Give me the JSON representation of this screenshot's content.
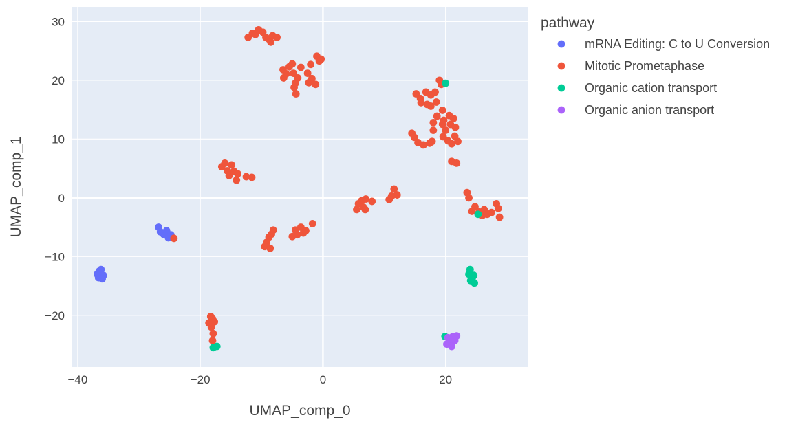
{
  "chart_data": {
    "type": "scatter",
    "xlabel": "UMAP_comp_0",
    "ylabel": "UMAP_comp_1",
    "xlim": [
      -41,
      33.5
    ],
    "ylim": [
      -28.8,
      32.5
    ],
    "xticks": [
      -40,
      -20,
      0,
      20
    ],
    "yticks": [
      -20,
      -10,
      0,
      10,
      20,
      30
    ],
    "grid": true,
    "legend": {
      "title": "pathway",
      "placement": "right"
    },
    "series": [
      {
        "name": "mRNA Editing: C to U Conversion",
        "color": "#636efa",
        "points": [
          [
            -36.5,
            -12.5
          ],
          [
            -36.2,
            -12.2
          ],
          [
            -35.8,
            -13.2
          ],
          [
            -36.6,
            -13.6
          ],
          [
            -36.0,
            -13.8
          ],
          [
            -36.8,
            -13.0
          ],
          [
            -26.8,
            -5.0
          ],
          [
            -26.5,
            -5.8
          ],
          [
            -26.0,
            -6.2
          ],
          [
            -25.5,
            -5.6
          ],
          [
            -25.2,
            -6.8
          ],
          [
            -24.8,
            -6.3
          ]
        ]
      },
      {
        "name": "Mitotic Prometaphase",
        "color": "#ef553b",
        "points": [
          [
            -12.2,
            27.3
          ],
          [
            -11.5,
            28.0
          ],
          [
            -11.0,
            27.8
          ],
          [
            -10.5,
            28.6
          ],
          [
            -9.8,
            28.2
          ],
          [
            -9.3,
            27.3
          ],
          [
            -8.8,
            27.0
          ],
          [
            -8.5,
            26.5
          ],
          [
            -8.2,
            27.6
          ],
          [
            -7.5,
            27.3
          ],
          [
            -6.5,
            21.8
          ],
          [
            -6.4,
            20.4
          ],
          [
            -6.0,
            21.1
          ],
          [
            -5.5,
            22.3
          ],
          [
            -5.0,
            22.8
          ],
          [
            -4.8,
            21.2
          ],
          [
            -4.5,
            19.5
          ],
          [
            -4.7,
            18.8
          ],
          [
            -4.4,
            17.7
          ],
          [
            -4.1,
            20.4
          ],
          [
            -3.6,
            22.2
          ],
          [
            -2.5,
            21.2
          ],
          [
            -2.3,
            19.6
          ],
          [
            -2.0,
            22.7
          ],
          [
            -1.8,
            20.3
          ],
          [
            -1.2,
            19.3
          ],
          [
            -1.0,
            24.1
          ],
          [
            -0.6,
            23.3
          ],
          [
            -0.3,
            23.6
          ],
          [
            -16.5,
            5.3
          ],
          [
            -16.0,
            5.9
          ],
          [
            -15.6,
            4.6
          ],
          [
            -15.3,
            3.8
          ],
          [
            -14.9,
            5.6
          ],
          [
            -14.5,
            4.5
          ],
          [
            -14.1,
            3.0
          ],
          [
            -13.9,
            4.1
          ],
          [
            -12.5,
            3.6
          ],
          [
            -11.6,
            3.5
          ],
          [
            -8.8,
            -6.7
          ],
          [
            -8.4,
            -6.2
          ],
          [
            -8.1,
            -5.5
          ],
          [
            -9.2,
            -7.6
          ],
          [
            -9.5,
            -8.3
          ],
          [
            -8.6,
            -8.6
          ],
          [
            -5.0,
            -6.6
          ],
          [
            -4.5,
            -5.5
          ],
          [
            -4.2,
            -6.3
          ],
          [
            -3.6,
            -5.0
          ],
          [
            -3.2,
            -6.0
          ],
          [
            -2.8,
            -5.6
          ],
          [
            -1.7,
            -4.4
          ],
          [
            -18.6,
            -21.3
          ],
          [
            -18.3,
            -20.2
          ],
          [
            -18.0,
            -20.6
          ],
          [
            -17.7,
            -21.1
          ],
          [
            -18.2,
            -22.0
          ],
          [
            -17.9,
            -23.1
          ],
          [
            -18.0,
            -24.3
          ],
          [
            -24.3,
            -6.9
          ],
          [
            5.5,
            -2.0
          ],
          [
            5.8,
            -1.0
          ],
          [
            6.3,
            -0.5
          ],
          [
            6.6,
            -1.6
          ],
          [
            6.9,
            -2.0
          ],
          [
            7.0,
            -0.2
          ],
          [
            8.0,
            -0.6
          ],
          [
            10.8,
            -0.3
          ],
          [
            11.2,
            0.3
          ],
          [
            11.6,
            1.5
          ],
          [
            12.1,
            0.5
          ],
          [
            14.5,
            11.0
          ],
          [
            14.9,
            10.3
          ],
          [
            15.2,
            17.7
          ],
          [
            15.5,
            9.4
          ],
          [
            15.9,
            16.9
          ],
          [
            16.0,
            16.2
          ],
          [
            16.4,
            9.0
          ],
          [
            16.8,
            18.0
          ],
          [
            17.0,
            15.9
          ],
          [
            17.4,
            9.3
          ],
          [
            17.6,
            15.6
          ],
          [
            17.6,
            17.5
          ],
          [
            17.8,
            9.6
          ],
          [
            18.0,
            12.8
          ],
          [
            18.0,
            11.5
          ],
          [
            18.3,
            18.0
          ],
          [
            18.5,
            16.3
          ],
          [
            18.6,
            13.9
          ],
          [
            19.0,
            20.0
          ],
          [
            19.3,
            19.3
          ],
          [
            19.5,
            14.9
          ],
          [
            19.5,
            12.5
          ],
          [
            19.7,
            13.2
          ],
          [
            19.6,
            10.4
          ],
          [
            20.0,
            11.5
          ],
          [
            20.4,
            9.7
          ],
          [
            20.6,
            14.0
          ],
          [
            20.8,
            12.5
          ],
          [
            21.0,
            9.2
          ],
          [
            21.3,
            13.5
          ],
          [
            21.5,
            10.5
          ],
          [
            21.6,
            12.0
          ],
          [
            22.0,
            9.6
          ],
          [
            21.0,
            6.2
          ],
          [
            21.8,
            5.9
          ],
          [
            23.5,
            0.9
          ],
          [
            23.8,
            0.0
          ],
          [
            24.3,
            -2.3
          ],
          [
            24.8,
            -1.5
          ],
          [
            25.5,
            -2.4
          ],
          [
            26.0,
            -3.0
          ],
          [
            26.3,
            -2.0
          ],
          [
            26.8,
            -2.8
          ],
          [
            27.5,
            -2.5
          ],
          [
            28.3,
            -1.0
          ],
          [
            28.6,
            -1.8
          ],
          [
            28.8,
            -3.3
          ]
        ]
      },
      {
        "name": "Organic cation transport",
        "color": "#00cc96",
        "points": [
          [
            20.0,
            19.5
          ],
          [
            25.3,
            -2.8
          ],
          [
            24.0,
            -12.2
          ],
          [
            23.8,
            -13.0
          ],
          [
            24.3,
            -13.8
          ],
          [
            24.6,
            -13.2
          ],
          [
            24.1,
            -14.1
          ],
          [
            24.7,
            -14.5
          ],
          [
            23.9,
            -12.8
          ],
          [
            24.4,
            -13.5
          ],
          [
            19.9,
            -23.6
          ],
          [
            -17.9,
            -25.5
          ],
          [
            -17.3,
            -25.3
          ]
        ]
      },
      {
        "name": "Organic anion transport",
        "color": "#ab63fa",
        "points": [
          [
            20.4,
            -23.8
          ],
          [
            20.8,
            -24.5
          ],
          [
            21.2,
            -23.6
          ],
          [
            21.5,
            -24.3
          ],
          [
            20.2,
            -24.9
          ],
          [
            21.0,
            -25.3
          ],
          [
            21.8,
            -23.5
          ],
          [
            20.6,
            -24.0
          ]
        ]
      }
    ]
  }
}
